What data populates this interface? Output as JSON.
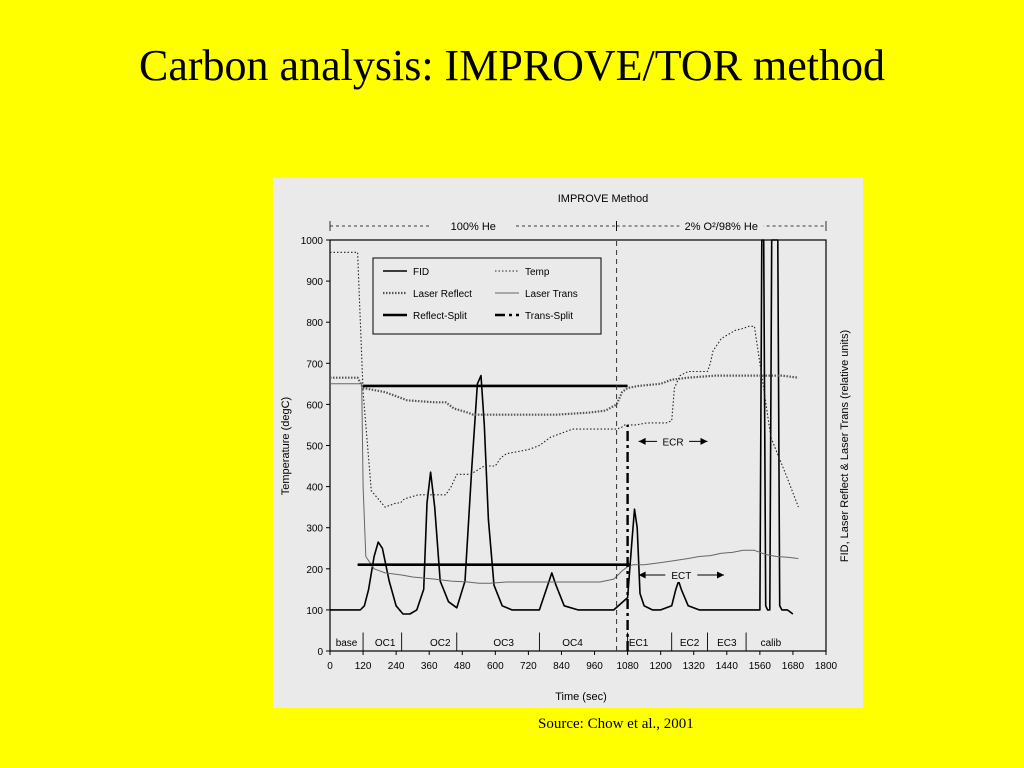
{
  "slide": {
    "title": "Carbon analysis: IMPROVE/TOR method",
    "source": "Source: Chow et al., 2001"
  },
  "colors": {
    "background": "#ffff00",
    "panel": "#eaeaea",
    "ink": "#000000"
  },
  "chart_data": {
    "type": "line",
    "title": "IMPROVE Method",
    "xlabel": "Time (sec)",
    "ylabel": "Temperature (degC)",
    "y2label": "FID, Laser Reflect & Laser Trans (relative units)",
    "xlim": [
      0,
      1800
    ],
    "ylim": [
      0,
      1000
    ],
    "xticks": [
      0,
      120,
      240,
      360,
      480,
      600,
      720,
      840,
      960,
      1080,
      1200,
      1320,
      1440,
      1560,
      1680,
      1800
    ],
    "yticks": [
      0,
      100,
      200,
      300,
      400,
      500,
      600,
      700,
      800,
      900,
      1000
    ],
    "grid": false,
    "legend_position": "top-left",
    "atmosphere_labels": [
      {
        "label": "100% He",
        "x0": 0,
        "x1": 1040
      },
      {
        "label": "2% O²/98% He",
        "x0": 1040,
        "x1": 1800
      }
    ],
    "phase_labels": [
      {
        "label": "base",
        "x": 60
      },
      {
        "label": "OC1",
        "x": 200
      },
      {
        "label": "OC2",
        "x": 400
      },
      {
        "label": "OC3",
        "x": 630
      },
      {
        "label": "OC4",
        "x": 880
      },
      {
        "label": "EC1",
        "x": 1120
      },
      {
        "label": "EC2",
        "x": 1305
      },
      {
        "label": "EC3",
        "x": 1440
      },
      {
        "label": "calib",
        "x": 1600
      }
    ],
    "phase_dividers_x": [
      120,
      260,
      460,
      760,
      1080,
      1240,
      1370,
      1510
    ],
    "annotations": [
      {
        "label": "ECR",
        "x0": 1120,
        "x1": 1370,
        "y": 510
      },
      {
        "label": "ECT",
        "x0": 1120,
        "x1": 1430,
        "y": 185
      }
    ],
    "series": [
      {
        "name": "FID",
        "style": "solid-thin",
        "x": [
          0,
          70,
          90,
          110,
          125,
          140,
          160,
          175,
          190,
          215,
          240,
          265,
          290,
          315,
          340,
          352,
          365,
          380,
          400,
          430,
          460,
          490,
          515,
          535,
          548,
          560,
          575,
          595,
          625,
          660,
          700,
          760,
          790,
          805,
          820,
          850,
          900,
          960,
          1030,
          1080,
          1095,
          1105,
          1115,
          1125,
          1140,
          1170,
          1200,
          1240,
          1255,
          1265,
          1275,
          1300,
          1340,
          1380,
          1420,
          1480,
          1510,
          1540,
          1560,
          1567,
          1574,
          1581,
          1588,
          1596,
          1603,
          1611,
          1618,
          1625,
          1632,
          1640,
          1660,
          1680
        ],
        "y": [
          100,
          100,
          100,
          100,
          110,
          150,
          230,
          265,
          250,
          170,
          110,
          90,
          90,
          100,
          150,
          360,
          435,
          350,
          170,
          120,
          105,
          170,
          450,
          650,
          670,
          550,
          320,
          160,
          110,
          100,
          100,
          100,
          160,
          190,
          160,
          110,
          100,
          100,
          100,
          130,
          260,
          345,
          300,
          140,
          110,
          100,
          100,
          110,
          150,
          170,
          150,
          110,
          100,
          100,
          100,
          100,
          100,
          100,
          100,
          1000,
          1000,
          110,
          100,
          100,
          1000,
          1000,
          1000,
          1000,
          110,
          100,
          100,
          90
        ]
      },
      {
        "name": "Temp",
        "style": "dotted",
        "x": [
          0,
          60,
          80,
          100,
          120,
          150,
          200,
          240,
          255,
          270,
          320,
          380,
          420,
          440,
          460,
          510,
          560,
          600,
          620,
          640,
          720,
          760,
          780,
          800,
          840,
          880,
          920,
          960,
          1000,
          1040,
          1060,
          1070,
          1080,
          1110,
          1150,
          1180,
          1220,
          1240,
          1245,
          1250,
          1270,
          1300,
          1340,
          1370,
          1380,
          1390,
          1420,
          1470,
          1500,
          1520,
          1540,
          1560,
          1600,
          1660,
          1700
        ],
        "y": [
          970,
          970,
          970,
          970,
          630,
          390,
          350,
          360,
          360,
          370,
          380,
          380,
          380,
          400,
          430,
          430,
          450,
          450,
          470,
          480,
          490,
          500,
          510,
          520,
          530,
          540,
          540,
          540,
          540,
          540,
          545,
          550,
          550,
          550,
          555,
          555,
          555,
          560,
          600,
          640,
          670,
          680,
          680,
          680,
          700,
          730,
          760,
          780,
          785,
          790,
          790,
          700,
          520,
          420,
          350
        ]
      },
      {
        "name": "Laser Reflect",
        "style": "dotted-thick",
        "x": [
          0,
          100,
          120,
          200,
          280,
          380,
          420,
          450,
          500,
          520,
          600,
          700,
          820,
          940,
          1000,
          1040,
          1060,
          1080,
          1120,
          1200,
          1240,
          1300,
          1400,
          1500,
          1560,
          1640,
          1700
        ],
        "y": [
          665,
          665,
          640,
          630,
          610,
          605,
          605,
          590,
          580,
          575,
          575,
          575,
          575,
          580,
          585,
          600,
          630,
          640,
          645,
          650,
          660,
          665,
          670,
          670,
          670,
          670,
          665
        ]
      },
      {
        "name": "Laser Trans",
        "style": "solid-thin-gray",
        "x": [
          0,
          100,
          115,
          120,
          130,
          160,
          200,
          260,
          300,
          380,
          440,
          500,
          540,
          580,
          640,
          700,
          760,
          820,
          900,
          980,
          1030,
          1060,
          1080,
          1100,
          1140,
          1200,
          1250,
          1300,
          1340,
          1380,
          1420,
          1460,
          1500,
          1540,
          1580,
          1620,
          1660,
          1700
        ],
        "y": [
          650,
          650,
          650,
          400,
          230,
          200,
          190,
          185,
          180,
          175,
          170,
          168,
          165,
          165,
          168,
          168,
          168,
          168,
          168,
          168,
          175,
          195,
          205,
          210,
          210,
          215,
          220,
          225,
          230,
          232,
          238,
          240,
          245,
          245,
          235,
          230,
          228,
          225
        ]
      },
      {
        "name": "Reflect-Split",
        "style": "thick",
        "x": [
          120,
          1080
        ],
        "y": [
          645,
          645
        ]
      },
      {
        "name": "Trans-Split",
        "style": "dash-dot",
        "x": [
          1080,
          1080
        ],
        "y": [
          0,
          550
        ]
      },
      {
        "name": "Transition",
        "style": "dashed-vertical",
        "x": [
          1040,
          1040
        ],
        "y": [
          0,
          1000
        ]
      },
      {
        "name": "Trans-Split-Level",
        "style": "thick",
        "x": [
          100,
          1090
        ],
        "y": [
          210,
          210
        ]
      }
    ]
  }
}
